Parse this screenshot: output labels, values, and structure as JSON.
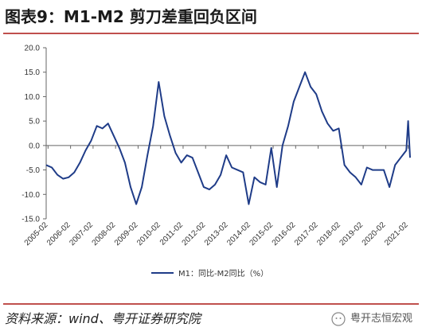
{
  "figure": {
    "title": "图表9：M1-M2 剪刀差重回负区间",
    "source": "资料来源：wind、粤开证券研究院",
    "brand": "粤开志恒宏观"
  },
  "chart_data": {
    "type": "line",
    "series": [
      {
        "name": "M1：同比-M2同比（%）",
        "color": "#1f3c88",
        "x": [
          "2005-01",
          "2005-04",
          "2005-07",
          "2005-10",
          "2006-01",
          "2006-04",
          "2006-07",
          "2006-10",
          "2007-01",
          "2007-04",
          "2007-07",
          "2007-10",
          "2008-01",
          "2008-04",
          "2008-07",
          "2008-10",
          "2009-01",
          "2009-04",
          "2009-07",
          "2009-10",
          "2010-01",
          "2010-04",
          "2010-07",
          "2010-10",
          "2011-01",
          "2011-04",
          "2011-07",
          "2011-10",
          "2012-01",
          "2012-04",
          "2012-07",
          "2012-10",
          "2013-01",
          "2013-04",
          "2013-07",
          "2013-10",
          "2014-01",
          "2014-04",
          "2014-07",
          "2014-10",
          "2015-01",
          "2015-04",
          "2015-07",
          "2015-10",
          "2016-01",
          "2016-04",
          "2016-07",
          "2016-10",
          "2017-01",
          "2017-04",
          "2017-07",
          "2017-10",
          "2018-01",
          "2018-04",
          "2018-07",
          "2018-10",
          "2019-01",
          "2019-04",
          "2019-07",
          "2019-10",
          "2020-01",
          "2020-04",
          "2020-07",
          "2020-10",
          "2021-01",
          "2021-02",
          "2021-03"
        ],
        "values": [
          -4.0,
          -4.5,
          -6.0,
          -6.8,
          -6.5,
          -5.5,
          -3.5,
          -1.0,
          1.0,
          4.0,
          3.5,
          4.5,
          2.0,
          -0.5,
          -3.5,
          -8.5,
          -12.0,
          -8.5,
          -2.0,
          4.0,
          13.0,
          6.0,
          2.0,
          -1.5,
          -3.5,
          -2.0,
          -2.5,
          -5.5,
          -8.5,
          -9.0,
          -8.0,
          -6.0,
          -2.0,
          -4.5,
          -5.0,
          -5.5,
          -12.0,
          -6.5,
          -7.5,
          -8.0,
          -0.5,
          -8.5,
          0.0,
          4.0,
          9.0,
          12.0,
          15.0,
          12.0,
          10.5,
          7.0,
          4.5,
          3.0,
          3.5,
          -4.0,
          -5.5,
          -6.5,
          -8.0,
          -4.5,
          -5.0,
          -5.0,
          -5.0,
          -8.5,
          -4.0,
          -2.5,
          -1.0,
          5.0,
          -2.5
        ]
      }
    ],
    "ylim": [
      -15.0,
      20.0
    ],
    "yticks": [
      "-15.0",
      "-10.0",
      "-5.0",
      "0.0",
      "5.0",
      "10.0",
      "15.0",
      "20.0"
    ],
    "xticks": [
      "2005-02",
      "2006-02",
      "2007-02",
      "2008-02",
      "2009-02",
      "2010-02",
      "2011-02",
      "2012-02",
      "2013-02",
      "2014-02",
      "2015-02",
      "2016-02",
      "2017-02",
      "2018-02",
      "2019-02",
      "2020-02",
      "2021-02"
    ],
    "legend": "bottom-center",
    "grid": false
  }
}
